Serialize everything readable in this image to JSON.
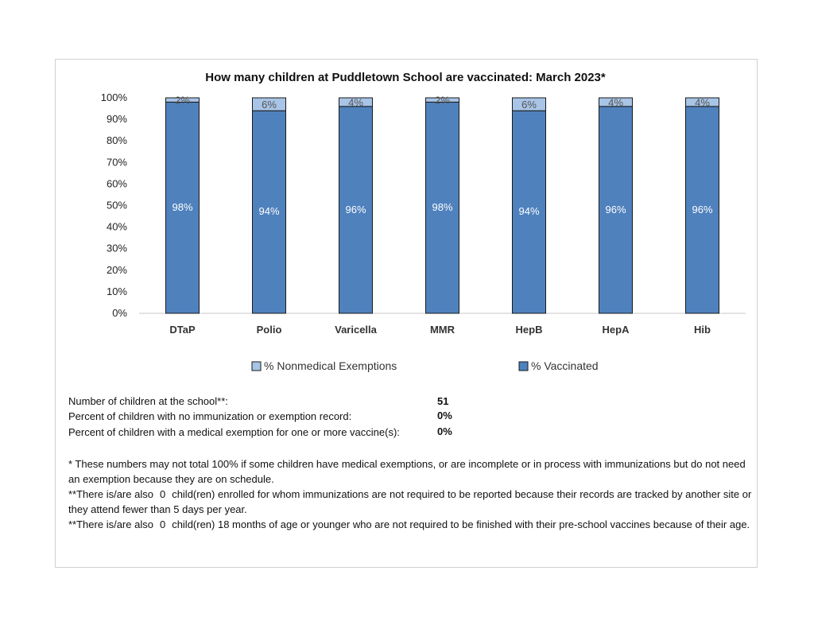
{
  "chart_data": {
    "type": "bar",
    "stacked": true,
    "title": "How many children at Puddletown School are vaccinated: March 2023*",
    "categories": [
      "DTaP",
      "Polio",
      "Varicella",
      "MMR",
      "HepB",
      "HepA",
      "Hib"
    ],
    "series": [
      {
        "name": "% Vaccinated",
        "values": [
          98,
          94,
          96,
          98,
          94,
          96,
          96
        ],
        "labels": [
          "98%",
          "94%",
          "96%",
          "98%",
          "94%",
          "96%",
          "96%"
        ],
        "color": "#4f81bd"
      },
      {
        "name": "% Nonmedical Exemptions",
        "values": [
          2,
          6,
          4,
          2,
          6,
          4,
          4
        ],
        "labels": [
          "2%",
          "6%",
          "4%",
          "2%",
          "6%",
          "4%",
          "4%"
        ],
        "color": "#a8c4e6"
      }
    ],
    "y_ticks": [
      "0%",
      "10%",
      "20%",
      "30%",
      "40%",
      "50%",
      "60%",
      "70%",
      "80%",
      "90%",
      "100%"
    ],
    "ylim": [
      0,
      100
    ],
    "grid": false,
    "legend": "bottom"
  },
  "stats": [
    {
      "label": "Number of children at the school**:",
      "value": "51"
    },
    {
      "label": "Percent of children with no immunization or exemption record:",
      "value": "0%"
    },
    {
      "label": "Percent of children with a medical exemption for one or more vaccine(s):",
      "value": "0%"
    }
  ],
  "notes": {
    "footnote1": "* These numbers may not total 100% if some children have medical exemptions, or are incomplete or in process with immunizations but do not need an exemption because they are on schedule.",
    "footnote2_pre": "**There is/are also",
    "footnote2_num": "0",
    "footnote2_post": "child(ren) enrolled for whom immunizations are not required to be reported because their records are tracked by another site or they attend fewer than 5 days per year.",
    "footnote3_pre": "**There is/are also",
    "footnote3_num": "0",
    "footnote3_post": "child(ren) 18 months of age or younger who are not required to be finished with their pre-school vaccines because of their age."
  }
}
